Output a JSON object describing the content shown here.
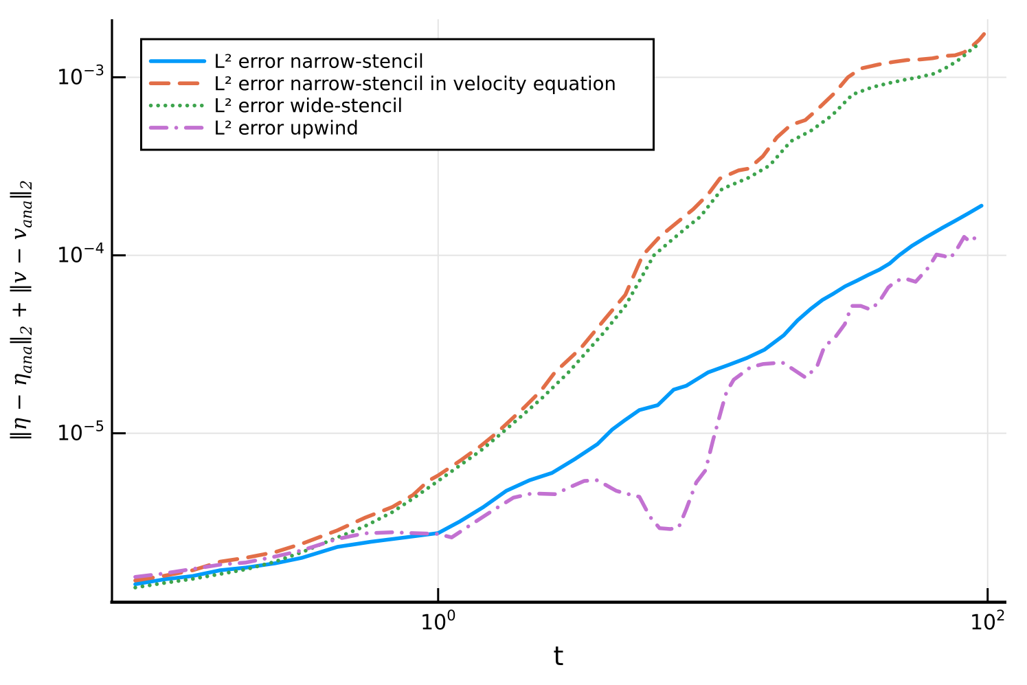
{
  "chart_data": {
    "type": "line",
    "title": "",
    "xlabel": "t",
    "ylabel": "‖η − ηₐₙₐ‖₂ + ‖v − vₐₙₐ‖₂",
    "ylabel_parts": [
      {
        "text": "‖η − η",
        "sub": false
      },
      {
        "text": "ana",
        "sub": true
      },
      {
        "text": "‖",
        "sub": false
      },
      {
        "text": "2",
        "sub": true
      },
      {
        "text": " + ‖v − v",
        "sub": false
      },
      {
        "text": "ana",
        "sub": true
      },
      {
        "text": "‖",
        "sub": false
      },
      {
        "text": "2",
        "sub": true
      }
    ],
    "x_scale": "log",
    "y_scale": "log",
    "xlim": [
      0.065,
      117
    ],
    "ylim": [
      1.13e-06,
      0.00212
    ],
    "grid": true,
    "background": "#FFFFFF",
    "gridline_color": "#E4E4E4",
    "axis_color": "#000000",
    "x_ticks": [
      {
        "value": 1,
        "label_base": "10",
        "label_exp": "0"
      },
      {
        "value": 100,
        "label_base": "10",
        "label_exp": "2"
      }
    ],
    "y_ticks": [
      {
        "value": 0.001,
        "label_base": "10",
        "label_exp": "−3"
      },
      {
        "value": 0.0001,
        "label_base": "10",
        "label_exp": "−4"
      },
      {
        "value": 1e-05,
        "label_base": "10",
        "label_exp": "−5"
      }
    ],
    "legend_position": "top-left",
    "series": [
      {
        "name": "L² error narrow-stencil",
        "color": "#009AFA",
        "style": "solid",
        "x": [
          0.079,
          0.1,
          0.128,
          0.161,
          0.2,
          0.255,
          0.32,
          0.43,
          0.57,
          0.76,
          1.0,
          1.2,
          1.46,
          1.77,
          2.15,
          2.6,
          3.16,
          3.8,
          4.3,
          4.8,
          5.4,
          6.3,
          7.2,
          8.0,
          9.6,
          11.4,
          13.3,
          15.4,
          18.1,
          20.3,
          22.7,
          25.0,
          27.5,
          30.3,
          33.4,
          37.0,
          40.3,
          44.0,
          47.6,
          53,
          60,
          68,
          76,
          85,
          95
        ],
        "y": [
          1.42e-06,
          1.51e-06,
          1.58e-06,
          1.7e-06,
          1.76e-06,
          1.86e-06,
          2e-06,
          2.3e-06,
          2.46e-06,
          2.6e-06,
          2.75e-06,
          3.2e-06,
          3.85e-06,
          4.75e-06,
          5.45e-06,
          6e-06,
          7.2e-06,
          8.7e-06,
          1.05e-05,
          1.19e-05,
          1.35e-05,
          1.44e-05,
          1.76e-05,
          1.85e-05,
          2.2e-05,
          2.42e-05,
          2.65e-05,
          2.95e-05,
          3.55e-05,
          4.3e-05,
          5e-05,
          5.6e-05,
          6.1e-05,
          6.7e-05,
          7.2e-05,
          7.8e-05,
          8.3e-05,
          9e-05,
          0.0001,
          0.000113,
          0.000127,
          0.000142,
          0.000156,
          0.000172,
          0.00019
        ]
      },
      {
        "name": "L² error narrow-stencil in velocity equation",
        "color": "#E26E47",
        "style": "dash",
        "x": [
          0.079,
          0.1,
          0.128,
          0.161,
          0.2,
          0.255,
          0.32,
          0.43,
          0.54,
          0.68,
          0.81,
          0.92,
          1.0,
          1.2,
          1.43,
          1.64,
          2.06,
          2.37,
          2.66,
          3.3,
          4.05,
          4.8,
          5.55,
          6.4,
          7.6,
          8.5,
          9.6,
          10.6,
          12.4,
          13.5,
          15.2,
          17.1,
          19.2,
          21.7,
          24.0,
          27.8,
          31.0,
          34.5,
          40.0,
          45.3,
          50.9,
          56.9,
          63,
          70,
          76,
          82,
          88,
          93,
          97
        ],
        "y": [
          1.49e-06,
          1.58e-06,
          1.7e-06,
          1.9e-06,
          2e-06,
          2.15e-06,
          2.4e-06,
          2.85e-06,
          3.35e-06,
          3.85e-06,
          4.5e-06,
          5.4e-06,
          5.8e-06,
          7e-06,
          8.5e-06,
          1.01e-05,
          1.4e-05,
          1.74e-05,
          2.2e-05,
          3e-05,
          4.4e-05,
          6e-05,
          0.0001,
          0.000127,
          0.000158,
          0.000182,
          0.00022,
          0.00027,
          0.0003,
          0.000307,
          0.00036,
          0.00046,
          0.00054,
          0.000575,
          0.00066,
          0.00082,
          0.001,
          0.00112,
          0.00118,
          0.00122,
          0.00125,
          0.00126,
          0.00128,
          0.00132,
          0.00133,
          0.00138,
          0.0015,
          0.00162,
          0.00175
        ]
      },
      {
        "name": "L² error wide-stencil",
        "color": "#3DA44D",
        "style": "dot",
        "x": [
          0.079,
          0.1,
          0.128,
          0.161,
          0.2,
          0.255,
          0.32,
          0.43,
          0.54,
          0.68,
          0.81,
          1.0,
          1.2,
          1.43,
          1.7,
          2.06,
          2.37,
          2.98,
          4.05,
          4.8,
          6.1,
          7.0,
          8.1,
          9.0,
          10.8,
          13.5,
          16.1,
          19.2,
          22.7,
          27.1,
          32.2,
          38,
          44,
          50,
          56,
          64,
          72,
          80,
          88,
          95
        ],
        "y": [
          1.36e-06,
          1.44e-06,
          1.52e-06,
          1.62e-06,
          1.72e-06,
          1.9e-06,
          2.15e-06,
          2.6e-06,
          3e-06,
          3.6e-06,
          4.3e-06,
          5.4e-06,
          6.6e-06,
          8e-06,
          1e-05,
          1.29e-05,
          1.56e-05,
          2.2e-05,
          3.75e-05,
          5.2e-05,
          0.0001,
          0.00012,
          0.000145,
          0.000165,
          0.000236,
          0.000273,
          0.00032,
          0.000437,
          0.0005,
          0.00061,
          0.0008,
          0.00088,
          0.00093,
          0.00097,
          0.001,
          0.00105,
          0.00115,
          0.00128,
          0.00145,
          0.00157
        ]
      },
      {
        "name": "L² error upwind",
        "color": "#C271D1",
        "style": "dashdot",
        "x": [
          0.079,
          0.1,
          0.128,
          0.161,
          0.2,
          0.255,
          0.32,
          0.43,
          0.54,
          0.68,
          0.855,
          1.0,
          1.12,
          1.33,
          1.61,
          1.88,
          2.2,
          2.66,
          3.03,
          3.4,
          3.8,
          4.45,
          4.8,
          5.4,
          5.9,
          6.4,
          7.0,
          7.5,
          8.0,
          8.7,
          9.4,
          10.0,
          10.8,
          11.2,
          11.9,
          13.7,
          15.2,
          17.9,
          19.5,
          21.8,
          24.0,
          25.4,
          28.0,
          30.2,
          32.0,
          34.5,
          37.5,
          40.3,
          43.5,
          46.5,
          50.1,
          54.7,
          61.1,
          65.1,
          69.4,
          73.1,
          78.3,
          82.1,
          86.4,
          92.4
        ],
        "y": [
          1.56e-06,
          1.63e-06,
          1.73e-06,
          1.83e-06,
          1.88e-06,
          2.03e-06,
          2.2e-06,
          2.55e-06,
          2.74e-06,
          2.78e-06,
          2.74e-06,
          2.72e-06,
          2.6e-06,
          3.1e-06,
          3.75e-06,
          4.35e-06,
          4.6e-06,
          4.55e-06,
          5e-06,
          5.4e-06,
          5.45e-06,
          4.75e-06,
          4.6e-06,
          4.4e-06,
          3.4e-06,
          2.93e-06,
          2.9e-06,
          2.95e-06,
          3.75e-06,
          5.3e-06,
          6.2e-06,
          9.1e-06,
          1.4e-05,
          1.7e-05,
          2e-05,
          2.35e-05,
          2.45e-05,
          2.5e-05,
          2.3e-05,
          2.05e-05,
          2.4e-05,
          3.05e-05,
          3.5e-05,
          4.1e-05,
          5.2e-05,
          5.2e-05,
          4.95e-05,
          5.5e-05,
          6.6e-05,
          7.2e-05,
          7.4e-05,
          7.1e-05,
          8.6e-05,
          0.000101,
          9.9e-05,
          9.6e-05,
          0.000112,
          0.000127,
          0.000119,
          0.00013
        ]
      }
    ]
  }
}
